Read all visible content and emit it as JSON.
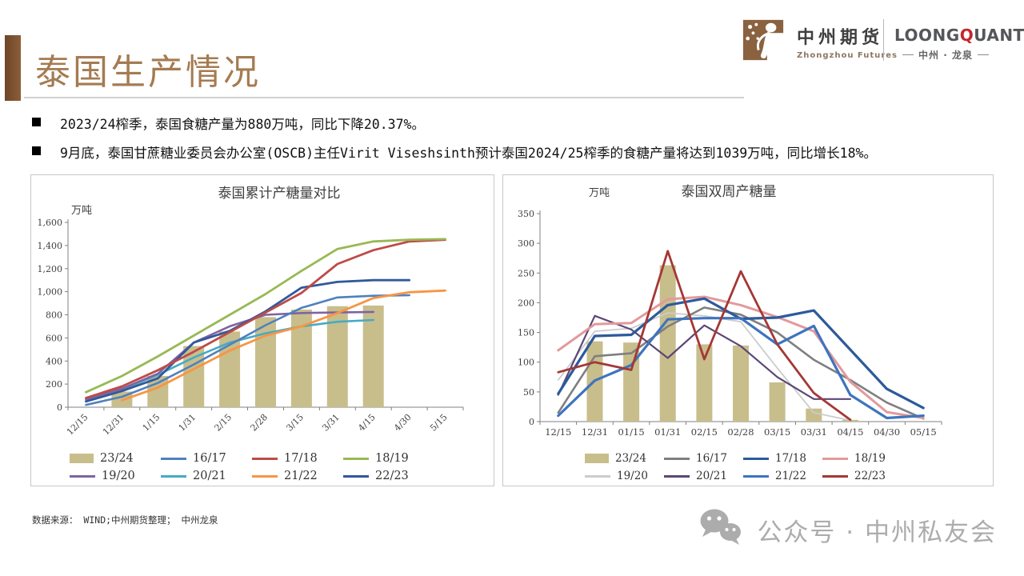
{
  "slide": {
    "title": "泰国生产情况",
    "bullets": [
      "2023/24榨季，泰国食糖产量为880万吨，同比下降20.37%。",
      "9月底，泰国甘蔗糖业委员会办公室(OSCB)主任Virit Viseshsinth预计泰国2024/25榨季的食糖产量将达到1039万吨，同比增长18%。"
    ],
    "footer_source": "数据来源： WIND;中州期货整理； 中州龙泉",
    "watermark": "公众号 · 中州私友会"
  },
  "header": {
    "logo1": {
      "cn": "中州期货",
      "en": "Zhongzhou Futures"
    },
    "logo2": {
      "brand_pre": "LOONG",
      "brand_q": "Q",
      "brand_post": "UANT",
      "sub": "中州 · 龙泉"
    }
  },
  "colors": {
    "title_brown": "#a57b51",
    "bar_tan": "#c8be8c",
    "accent_red": "#c5262c",
    "axis_gray": "#808080"
  },
  "chart_data": [
    {
      "id": "left-chart",
      "type": "bar+line",
      "title": "泰国累计产糖量对比",
      "unit": "万吨",
      "categories": [
        "12/15",
        "12/31",
        "1/15",
        "1/31",
        "2/15",
        "2/28",
        "3/15",
        "3/31",
        "4/15",
        "4/30",
        "5/15"
      ],
      "ylim": [
        0,
        1600
      ],
      "ystep": 200,
      "y_comma": true,
      "rotate_x_labels": true,
      "legend_position": "bottom",
      "grid": false,
      "series": [
        {
          "name": "23/24",
          "kind": "bar",
          "color": "#c8be8c",
          "values": [
            null,
            135,
            270,
            530,
            655,
            780,
            845,
            875,
            880,
            null,
            null
          ]
        },
        {
          "name": "20/21",
          "kind": "line",
          "color": "#46aac5",
          "w": 2.6,
          "values": [
            60,
            150,
            280,
            430,
            560,
            640,
            700,
            740,
            755,
            null,
            null
          ]
        },
        {
          "name": "19/20",
          "kind": "line",
          "color": "#7f63a1",
          "w": 2.6,
          "values": [
            70,
            160,
            290,
            560,
            700,
            800,
            815,
            820,
            825,
            null,
            null
          ]
        },
        {
          "name": "16/17",
          "kind": "line",
          "color": "#4f81bd",
          "w": 2.6,
          "values": [
            20,
            90,
            210,
            370,
            540,
            710,
            860,
            950,
            965,
            970,
            null
          ]
        },
        {
          "name": "21/22",
          "kind": "line",
          "color": "#f79545",
          "w": 2.8,
          "values": [
            null,
            60,
            170,
            330,
            490,
            620,
            700,
            815,
            945,
            995,
            1010
          ]
        },
        {
          "name": "22/23",
          "kind": "line",
          "color": "#31599b",
          "w": 2.8,
          "values": [
            50,
            140,
            250,
            560,
            660,
            830,
            1035,
            1085,
            1100,
            1100,
            null
          ]
        },
        {
          "name": "17/18",
          "kind": "line",
          "color": "#be4b48",
          "w": 2.8,
          "values": [
            80,
            180,
            320,
            480,
            650,
            820,
            990,
            1240,
            1360,
            1435,
            1450
          ]
        },
        {
          "name": "18/19",
          "kind": "line",
          "color": "#98b954",
          "w": 2.8,
          "values": [
            130,
            270,
            440,
            620,
            800,
            980,
            1180,
            1370,
            1435,
            1450,
            1455
          ]
        }
      ],
      "legend_rows": [
        [
          "23/24",
          "16/17",
          "17/18",
          "18/19"
        ],
        [
          "19/20",
          "20/21",
          "21/22",
          "22/23"
        ]
      ]
    },
    {
      "id": "right-chart",
      "type": "bar+line",
      "title": "泰国双周产糖量",
      "unit": "万吨",
      "categories": [
        "12/15",
        "12/31",
        "01/15",
        "01/31",
        "02/15",
        "02/28",
        "03/15",
        "03/31",
        "04/15",
        "04/30",
        "05/15"
      ],
      "ylim": [
        0,
        350
      ],
      "ystep": 50,
      "y_comma": false,
      "rotate_x_labels": false,
      "legend_position": "bottom",
      "grid": false,
      "series": [
        {
          "name": "23/24",
          "kind": "bar",
          "color": "#c8be8c",
          "values": [
            null,
            135,
            133,
            263,
            130,
            128,
            66,
            22,
            3,
            null,
            null
          ]
        },
        {
          "name": "19/20",
          "kind": "line",
          "color": "#cccccc",
          "w": 1.8,
          "values": [
            70,
            152,
            157,
            183,
            178,
            168,
            90,
            15,
            2,
            null,
            null
          ]
        },
        {
          "name": "16/17",
          "kind": "line",
          "color": "#7f7f7f",
          "w": 2.6,
          "values": [
            15,
            110,
            115,
            160,
            192,
            180,
            150,
            104,
            70,
            32,
            5
          ]
        },
        {
          "name": "20/21",
          "kind": "line",
          "color": "#5c4776",
          "w": 2.2,
          "values": [
            45,
            178,
            155,
            107,
            162,
            127,
            75,
            38,
            38,
            null,
            null
          ]
        },
        {
          "name": "18/19",
          "kind": "line",
          "color": "#e29a9b",
          "w": 3.0,
          "values": [
            120,
            164,
            166,
            206,
            210,
            196,
            176,
            152,
            67,
            16,
            6
          ]
        },
        {
          "name": "17/18",
          "kind": "line",
          "color": "#2d5a9b",
          "w": 3.2,
          "values": [
            47,
            144,
            146,
            196,
            207,
            173,
            175,
            187,
            121,
            55,
            23
          ]
        },
        {
          "name": "21/22",
          "kind": "line",
          "color": "#3e74be",
          "w": 3.2,
          "values": [
            10,
            69,
            95,
            172,
            174,
            174,
            130,
            161,
            45,
            6,
            10
          ]
        },
        {
          "name": "22/23",
          "kind": "line",
          "color": "#a43835",
          "w": 2.8,
          "values": [
            83,
            100,
            87,
            287,
            105,
            253,
            130,
            48,
            3,
            null,
            null
          ]
        }
      ],
      "legend_rows": [
        [
          "23/24",
          "16/17",
          "17/18",
          "18/19"
        ],
        [
          "19/20",
          "20/21",
          "21/22",
          "22/23"
        ]
      ]
    }
  ]
}
